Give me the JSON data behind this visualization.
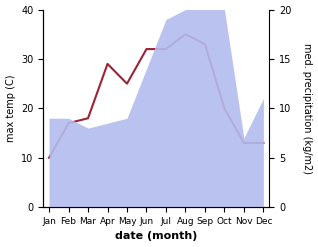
{
  "months": [
    "Jan",
    "Feb",
    "Mar",
    "Apr",
    "May",
    "Jun",
    "Jul",
    "Aug",
    "Sep",
    "Oct",
    "Nov",
    "Dec"
  ],
  "temp": [
    10,
    17,
    18,
    29,
    25,
    32,
    32,
    35,
    33,
    20,
    13,
    13
  ],
  "precip_kg": [
    9,
    9,
    8,
    8.5,
    9,
    14,
    19,
    20,
    20.5,
    20,
    7,
    11
  ],
  "temp_ylim": [
    0,
    40
  ],
  "right_ylim": [
    0,
    20
  ],
  "xlabel": "date (month)",
  "ylabel_left": "max temp (C)",
  "ylabel_right": "med. precipitation (kg/m2)",
  "temp_color": "#9b2335",
  "precip_fill_color": "#b3bcef",
  "background": "#ffffff",
  "left_ticks": [
    0,
    10,
    20,
    30,
    40
  ],
  "right_ticks": [
    0,
    5,
    10,
    15,
    20
  ],
  "xlabel_fontsize": 8,
  "ylabel_fontsize": 7,
  "tick_fontsize": 7,
  "linewidth": 1.5
}
